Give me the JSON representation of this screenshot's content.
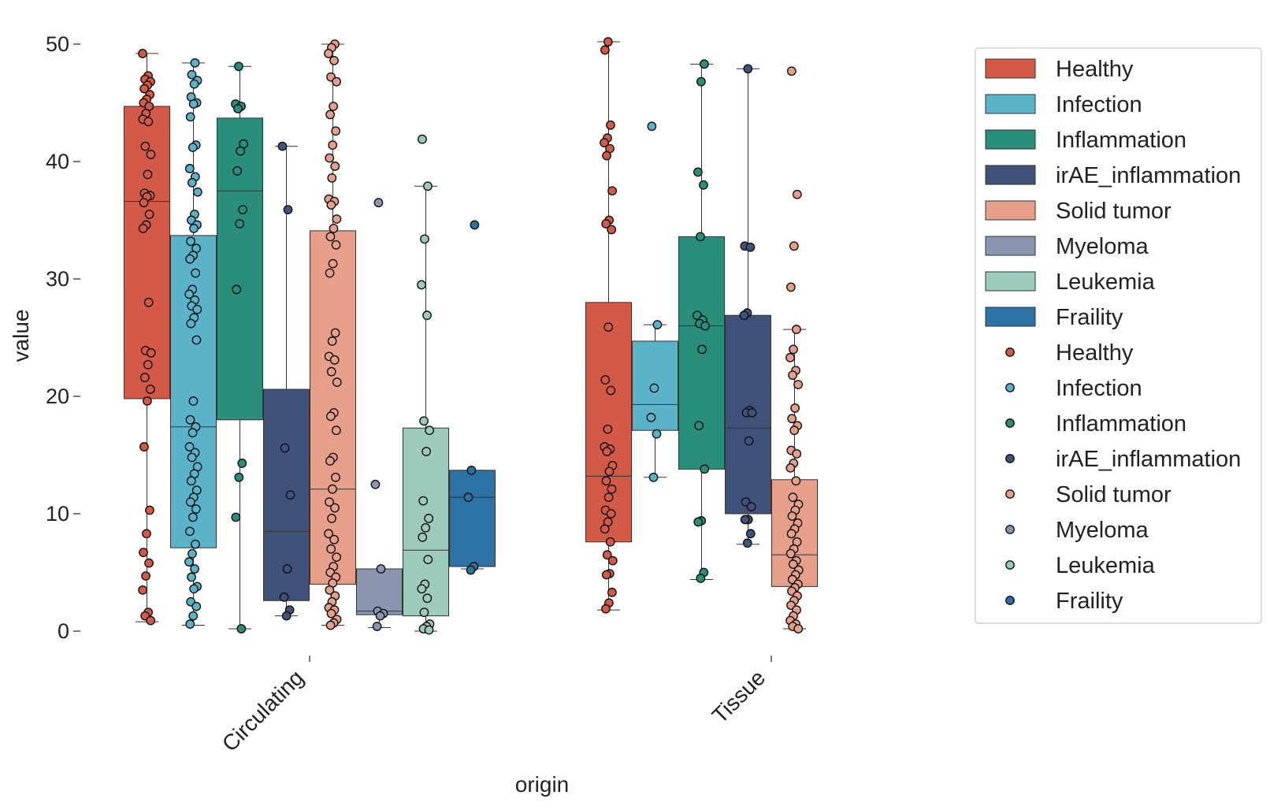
{
  "chart_data": {
    "type": "boxplot",
    "xlabel": "origin",
    "ylabel": "value",
    "ylim": [
      -1.5,
      51.5
    ],
    "yticks": [
      0,
      10,
      20,
      30,
      40,
      50
    ],
    "categories": [
      "Circulating",
      "Tissue"
    ],
    "grid": false,
    "legend_position": "right",
    "hues": [
      {
        "name": "Healthy",
        "color": "#d35a47"
      },
      {
        "name": "Infection",
        "color": "#5ab3c9"
      },
      {
        "name": "Inflammation",
        "color": "#2a8f7a"
      },
      {
        "name": "irAE_inflammation",
        "color": "#41527a"
      },
      {
        "name": "Solid tumor",
        "color": "#e6a089"
      },
      {
        "name": "Myeloma",
        "color": "#8a96b0"
      },
      {
        "name": "Leukemia",
        "color": "#9ccbbd"
      },
      {
        "name": "Fraility",
        "color": "#2d72a4"
      }
    ],
    "legend_box_entries": [
      "Healthy",
      "Infection",
      "Inflammation",
      "irAE_inflammation",
      "Solid tumor",
      "Myeloma",
      "Leukemia",
      "Fraility"
    ],
    "legend_point_entries": [
      "Healthy",
      "Infection",
      "Inflammation",
      "irAE_inflammation",
      "Solid tumor",
      "Myeloma",
      "Leukemia",
      "Fraility"
    ],
    "boxes": [
      {
        "category": "Circulating",
        "hue": "Healthy",
        "q1": 19.8,
        "median": 36.6,
        "q3": 44.7,
        "whisker_low": 0.8,
        "whisker_high": 49.2
      },
      {
        "category": "Circulating",
        "hue": "Infection",
        "q1": 7.1,
        "median": 17.4,
        "q3": 33.7,
        "whisker_low": 0.5,
        "whisker_high": 48.4
      },
      {
        "category": "Circulating",
        "hue": "Inflammation",
        "q1": 18.0,
        "median": 37.5,
        "q3": 43.7,
        "whisker_low": 0.2,
        "whisker_high": 48.1
      },
      {
        "category": "Circulating",
        "hue": "irAE_inflammation",
        "q1": 2.6,
        "median": 8.5,
        "q3": 20.6,
        "whisker_low": 1.3,
        "whisker_high": 41.3
      },
      {
        "category": "Circulating",
        "hue": "Solid tumor",
        "q1": 4.0,
        "median": 12.1,
        "q3": 34.1,
        "whisker_low": 0.5,
        "whisker_high": 50.0
      },
      {
        "category": "Circulating",
        "hue": "Myeloma",
        "q1": 1.4,
        "median": 1.7,
        "q3": 5.3,
        "whisker_low": 0.3,
        "whisker_high": 5.3
      },
      {
        "category": "Circulating",
        "hue": "Leukemia",
        "q1": 1.3,
        "median": 6.9,
        "q3": 17.3,
        "whisker_low": 0.0,
        "whisker_high": 37.9
      },
      {
        "category": "Circulating",
        "hue": "Fraility",
        "q1": 5.5,
        "median": 11.4,
        "q3": 13.7,
        "whisker_low": 5.3,
        "whisker_high": 13.7
      },
      {
        "category": "Tissue",
        "hue": "Healthy",
        "q1": 7.6,
        "median": 13.2,
        "q3": 28.0,
        "whisker_low": 1.8,
        "whisker_high": 50.2
      },
      {
        "category": "Tissue",
        "hue": "Infection",
        "q1": 17.1,
        "median": 19.3,
        "q3": 24.7,
        "whisker_low": 13.1,
        "whisker_high": 26.1
      },
      {
        "category": "Tissue",
        "hue": "Inflammation",
        "q1": 13.8,
        "median": 26.0,
        "q3": 33.6,
        "whisker_low": 4.4,
        "whisker_high": 48.3
      },
      {
        "category": "Tissue",
        "hue": "irAE_inflammation",
        "q1": 10.0,
        "median": 17.3,
        "q3": 26.9,
        "whisker_low": 7.4,
        "whisker_high": 47.9
      },
      {
        "category": "Tissue",
        "hue": "Solid tumor",
        "q1": 3.8,
        "median": 6.5,
        "q3": 12.9,
        "whisker_low": 0.2,
        "whisker_high": 25.7
      }
    ],
    "points": [
      {
        "category": "Circulating",
        "hue": "Healthy",
        "values": [
          49.2,
          47.3,
          47.0,
          46.8,
          46.5,
          46.2,
          45.7,
          45.3,
          45.0,
          44.7,
          44.1,
          43.6,
          43.4,
          41.3,
          40.6,
          38.9,
          37.3,
          37.1,
          37.0,
          36.5,
          35.5,
          34.6,
          34.3,
          28.0,
          23.9,
          23.7,
          22.7,
          21.6,
          20.6,
          19.6,
          15.7,
          10.3,
          8.3,
          6.7,
          5.8,
          4.7,
          3.5,
          1.6,
          1.3,
          0.9
        ]
      },
      {
        "category": "Circulating",
        "hue": "Infection",
        "values": [
          48.4,
          47.4,
          46.9,
          46.6,
          45.5,
          45.0,
          44.9,
          43.8,
          41.4,
          41.2,
          39.4,
          38.7,
          38.2,
          37.4,
          35.5,
          35.0,
          34.6,
          34.3,
          33.2,
          32.6,
          32.0,
          31.7,
          30.5,
          29.1,
          28.7,
          28.2,
          27.7,
          27.4,
          26.7,
          26.2,
          24.8,
          19.6,
          18.0,
          17.4,
          16.9,
          15.7,
          15.2,
          14.8,
          14.0,
          13.4,
          12.8,
          12.0,
          11.4,
          11.0,
          10.4,
          9.7,
          8.5,
          7.4,
          6.6,
          5.9,
          5.3,
          4.6,
          3.8,
          3.6,
          2.5,
          2.1,
          1.3,
          0.6
        ]
      },
      {
        "category": "Circulating",
        "hue": "Inflammation",
        "values": [
          48.1,
          44.9,
          44.7,
          44.5,
          41.5,
          40.9,
          39.2,
          35.9,
          34.7,
          29.1,
          14.3,
          13.1,
          9.7,
          0.2
        ]
      },
      {
        "category": "Circulating",
        "hue": "irAE_inflammation",
        "values": [
          41.3,
          35.9,
          15.6,
          11.6,
          5.3,
          2.9,
          1.8,
          1.3
        ]
      },
      {
        "category": "Circulating",
        "hue": "Solid tumor",
        "values": [
          50.0,
          49.7,
          49.2,
          48.6,
          47.2,
          46.8,
          44.7,
          44.0,
          42.6,
          41.4,
          40.3,
          39.6,
          38.6,
          36.8,
          36.6,
          36.3,
          35.1,
          34.3,
          33.6,
          32.9,
          31.3,
          30.5,
          25.4,
          24.7,
          23.4,
          23.1,
          22.1,
          21.2,
          18.6,
          18.3,
          17.1,
          14.8,
          14.5,
          13.1,
          12.1,
          11.0,
          10.5,
          9.6,
          8.3,
          7.8,
          7.0,
          6.3,
          5.5,
          5.0,
          4.6,
          4.1,
          3.5,
          3.0,
          2.5,
          2.0,
          1.8,
          1.5,
          1.0,
          0.7,
          0.5
        ]
      },
      {
        "category": "Circulating",
        "hue": "Myeloma",
        "values": [
          36.5,
          12.5,
          5.3,
          1.7,
          1.5,
          1.3,
          0.4
        ]
      },
      {
        "category": "Circulating",
        "hue": "Leukemia",
        "values": [
          41.9,
          37.9,
          33.4,
          29.5,
          26.9,
          17.9,
          17.1,
          15.3,
          11.1,
          9.6,
          8.8,
          8.0,
          6.1,
          4.0,
          3.6,
          2.8,
          1.6,
          0.6,
          0.4,
          0.2,
          0.1
        ]
      },
      {
        "category": "Circulating",
        "hue": "Fraility",
        "values": [
          34.6,
          13.7,
          11.4,
          5.5,
          5.2
        ]
      },
      {
        "category": "Tissue",
        "hue": "Healthy",
        "values": [
          50.2,
          49.5,
          43.1,
          42.0,
          41.6,
          41.1,
          40.5,
          37.5,
          35.0,
          34.7,
          34.2,
          25.9,
          21.4,
          20.5,
          17.2,
          15.7,
          15.5,
          15.3,
          14.1,
          13.6,
          12.8,
          12.1,
          11.4,
          10.3,
          10.0,
          9.3,
          8.7,
          7.6,
          6.5,
          6.0,
          4.9,
          4.8,
          3.3,
          2.4,
          1.9
        ]
      },
      {
        "category": "Tissue",
        "hue": "Infection",
        "values": [
          43.0,
          26.1,
          20.7,
          18.2,
          16.8,
          13.1
        ]
      },
      {
        "category": "Tissue",
        "hue": "Inflammation",
        "values": [
          48.3,
          46.8,
          39.1,
          38.0,
          33.6,
          26.9,
          26.5,
          26.2,
          26.0,
          24.0,
          17.5,
          13.8,
          9.4,
          9.3,
          5.0,
          4.5
        ]
      },
      {
        "category": "Tissue",
        "hue": "irAE_inflammation",
        "values": [
          47.9,
          32.8,
          32.7,
          27.1,
          26.9,
          18.8,
          18.6,
          18.6,
          16.2,
          11.0,
          10.6,
          9.5,
          9.5,
          8.3,
          7.5
        ]
      },
      {
        "category": "Tissue",
        "hue": "Solid tumor",
        "values": [
          47.7,
          37.2,
          32.8,
          29.3,
          25.7,
          24.0,
          23.3,
          22.2,
          21.8,
          21.0,
          19.0,
          18.1,
          17.5,
          17.1,
          15.4,
          15.1,
          14.3,
          13.9,
          12.8,
          11.4,
          10.8,
          10.3,
          9.8,
          9.2,
          8.7,
          8.3,
          7.6,
          7.0,
          6.6,
          6.0,
          5.7,
          5.2,
          4.8,
          4.4,
          4.0,
          3.7,
          3.4,
          3.0,
          2.6,
          2.2,
          1.8,
          1.3,
          0.9,
          0.6,
          0.4,
          0.2
        ]
      }
    ]
  }
}
